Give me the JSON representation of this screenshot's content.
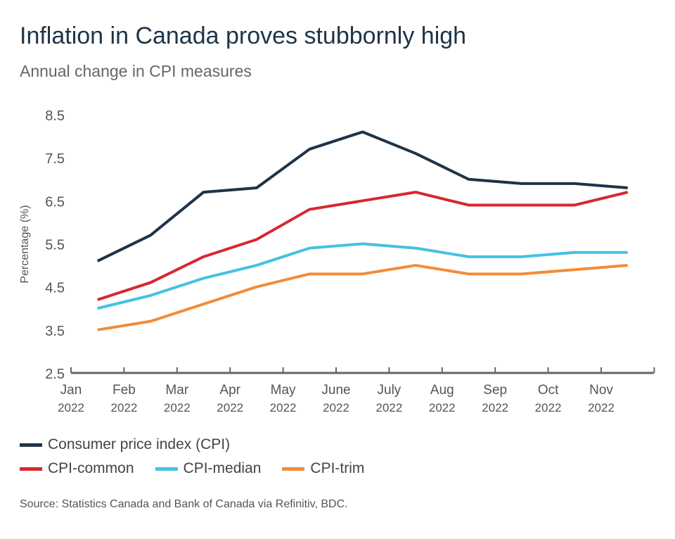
{
  "title": "Inflation in Canada proves stubbornly high",
  "subtitle": "Annual change in CPI measures",
  "source": "Source: Statistics Canada and Bank of Canada via Refinitiv, BDC.",
  "chart_data": {
    "type": "line",
    "ylabel": "Percentage (%)",
    "xlabel": "",
    "ylim": [
      2.5,
      8.5
    ],
    "yticks": [
      "2.5",
      "3.5",
      "4.5",
      "5.5",
      "6.5",
      "7.5",
      "8.5"
    ],
    "categories": [
      [
        "Jan",
        "2022"
      ],
      [
        "Feb",
        "2022"
      ],
      [
        "Mar",
        "2022"
      ],
      [
        "Apr",
        "2022"
      ],
      [
        "May",
        "2022"
      ],
      [
        "June",
        "2022"
      ],
      [
        "July",
        "2022"
      ],
      [
        "Aug",
        "2022"
      ],
      [
        "Sep",
        "2022"
      ],
      [
        "Oct",
        "2022"
      ],
      [
        "Nov",
        "2022"
      ]
    ],
    "grid": false,
    "legend_placement": "bottom",
    "series": [
      {
        "name": "Consumer price index (CPI)",
        "color": "#1f3347",
        "values": [
          5.1,
          5.7,
          6.7,
          6.8,
          7.7,
          8.1,
          7.6,
          7.0,
          6.9,
          6.9,
          6.8
        ]
      },
      {
        "name": "CPI-common",
        "color": "#d7282f",
        "values": [
          4.2,
          4.6,
          5.2,
          5.6,
          6.3,
          6.5,
          6.7,
          6.4,
          6.4,
          6.4,
          6.7
        ]
      },
      {
        "name": "CPI-median",
        "color": "#45c1e3",
        "values": [
          4.0,
          4.3,
          4.7,
          5.0,
          5.4,
          5.5,
          5.4,
          5.2,
          5.2,
          5.3,
          5.3
        ]
      },
      {
        "name": "CPI-trim",
        "color": "#f28c38",
        "values": [
          3.5,
          3.7,
          4.1,
          4.5,
          4.8,
          4.8,
          5.0,
          4.8,
          4.8,
          4.9,
          5.0
        ]
      }
    ]
  }
}
